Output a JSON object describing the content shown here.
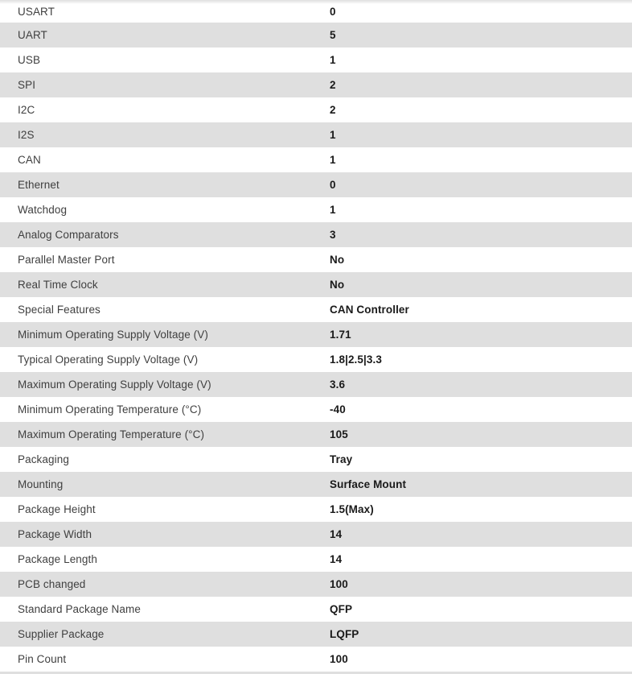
{
  "colors": {
    "row_background": "#ffffff",
    "row_alt_background": "#dfdfdf",
    "label_text": "#3f3f3f",
    "value_text": "#1a1a1a"
  },
  "table": {
    "rows": [
      {
        "label": "USART",
        "value": "0"
      },
      {
        "label": "UART",
        "value": "5"
      },
      {
        "label": "USB",
        "value": "1"
      },
      {
        "label": "SPI",
        "value": "2"
      },
      {
        "label": "I2C",
        "value": "2"
      },
      {
        "label": "I2S",
        "value": "1"
      },
      {
        "label": "CAN",
        "value": "1"
      },
      {
        "label": "Ethernet",
        "value": "0"
      },
      {
        "label": "Watchdog",
        "value": "1"
      },
      {
        "label": "Analog Comparators",
        "value": "3"
      },
      {
        "label": "Parallel Master Port",
        "value": "No"
      },
      {
        "label": "Real Time Clock",
        "value": "No"
      },
      {
        "label": "Special Features",
        "value": "CAN Controller"
      },
      {
        "label": "Minimum Operating Supply Voltage (V)",
        "value": "1.71"
      },
      {
        "label": "Typical Operating Supply Voltage (V)",
        "value": "1.8|2.5|3.3"
      },
      {
        "label": "Maximum Operating Supply Voltage (V)",
        "value": "3.6"
      },
      {
        "label": "Minimum Operating Temperature (°C)",
        "value": "-40"
      },
      {
        "label": "Maximum Operating Temperature (°C)",
        "value": "105"
      },
      {
        "label": "Packaging",
        "value": "Tray"
      },
      {
        "label": "Mounting",
        "value": "Surface Mount"
      },
      {
        "label": "Package Height",
        "value": "1.5(Max)"
      },
      {
        "label": "Package Width",
        "value": "14"
      },
      {
        "label": "Package Length",
        "value": "14"
      },
      {
        "label": "PCB changed",
        "value": "100"
      },
      {
        "label": "Standard Package Name",
        "value": "QFP"
      },
      {
        "label": "Supplier Package",
        "value": "LQFP"
      },
      {
        "label": "Pin Count",
        "value": "100"
      }
    ]
  }
}
